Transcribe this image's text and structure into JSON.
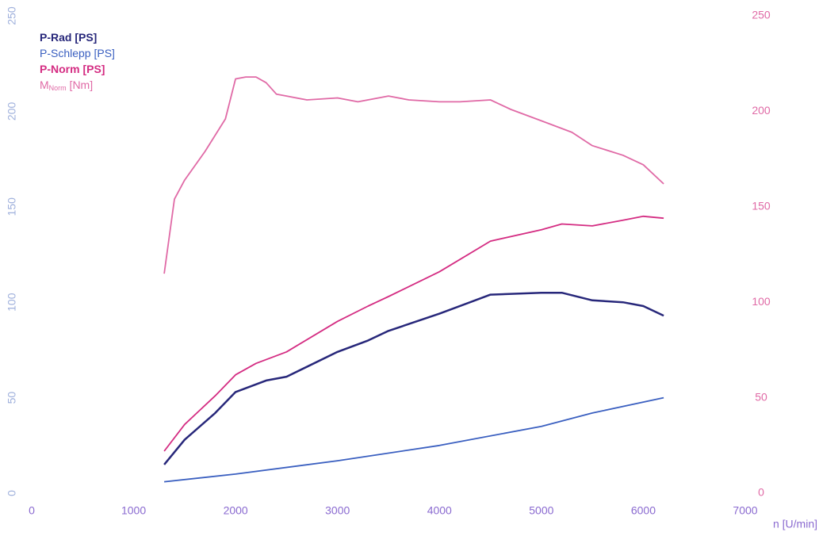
{
  "chart_data": {
    "type": "line",
    "x_label": "n [U/min]",
    "xlim": [
      0,
      7000
    ],
    "xticks": [
      0,
      1000,
      2000,
      3000,
      4000,
      5000,
      6000,
      7000
    ],
    "ylim": [
      0,
      250
    ],
    "yticks": [
      0,
      50,
      100,
      150,
      200,
      250
    ],
    "y2lim": [
      0,
      250
    ],
    "y2ticks": [
      0,
      50,
      100,
      150,
      200,
      250
    ],
    "grid": false,
    "legend": "upper left",
    "series": [
      {
        "name": "P-Rad [PS]",
        "color": "#27277a",
        "x": [
          1300,
          1500,
          1800,
          2000,
          2300,
          2500,
          3000,
          3300,
          3500,
          4000,
          4500,
          5000,
          5200,
          5500,
          5800,
          6000,
          6200
        ],
        "values": [
          15,
          28,
          42,
          53,
          59,
          61,
          74,
          80,
          85,
          94,
          104,
          105,
          105,
          101,
          100,
          98,
          93
        ]
      },
      {
        "name": "P-Schlepp [PS]",
        "color": "#3a5fc0",
        "x": [
          1300,
          2000,
          3000,
          4000,
          5000,
          5500,
          6200
        ],
        "values": [
          6,
          10,
          17,
          25,
          35,
          42,
          50
        ]
      },
      {
        "name": "P-Norm [PS]",
        "color": "#d42c82",
        "x": [
          1300,
          1500,
          1800,
          2000,
          2200,
          2500,
          3000,
          3300,
          3500,
          4000,
          4500,
          5000,
          5200,
          5500,
          5800,
          6000,
          6200
        ],
        "values": [
          22,
          36,
          51,
          62,
          68,
          74,
          90,
          98,
          103,
          116,
          132,
          138,
          141,
          140,
          143,
          145,
          144
        ]
      },
      {
        "name": "M",
        "name_subscript": "Norm",
        "name_suffix": " [Nm]",
        "color": "#e06aa6",
        "axis": "y2",
        "x": [
          1300,
          1400,
          1500,
          1700,
          1900,
          2000,
          2100,
          2200,
          2300,
          2400,
          2500,
          2700,
          3000,
          3200,
          3500,
          3700,
          4000,
          4200,
          4500,
          4700,
          5000,
          5300,
          5500,
          5800,
          6000,
          6200
        ],
        "values": [
          115,
          154,
          164,
          179,
          196,
          217,
          218,
          218,
          215,
          209,
          208,
          206,
          207,
          205,
          208,
          206,
          205,
          205,
          206,
          201,
          195,
          189,
          182,
          177,
          172,
          162
        ]
      }
    ]
  }
}
